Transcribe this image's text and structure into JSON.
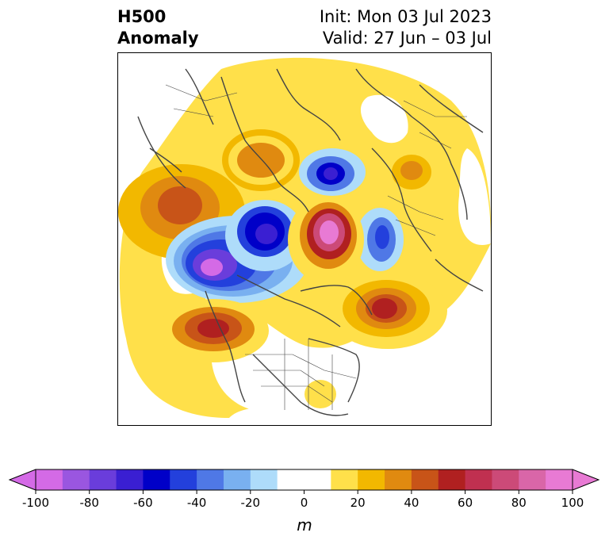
{
  "title": {
    "left_line1": "H500",
    "left_line2": "Anomaly",
    "right_line1": "Init: Mon 03 Jul 2023",
    "right_line2": "Valid: 27 Jun – 03 Jul"
  },
  "colorbar": {
    "unit_label": "m",
    "ticks": [
      "-100",
      "-80",
      "-60",
      "-40",
      "-20",
      "0",
      "20",
      "40",
      "60",
      "80",
      "100"
    ],
    "colors": [
      "#d46ae6",
      "#9a56e0",
      "#6a3ddb",
      "#3a1fd2",
      "#0000c8",
      "#2340dc",
      "#4f78e6",
      "#79b0f0",
      "#aedcfa",
      "#ffffff",
      "#ffffff",
      "#ffe04a",
      "#f2b800",
      "#e08a10",
      "#c85418",
      "#b02020",
      "#c03050",
      "#cc4a78",
      "#d966a8",
      "#e87ad4"
    ],
    "min_color": "#d46ae6",
    "max_color": "#e87ad4"
  },
  "anomaly_colors": {
    "pos20": "#ffe04a",
    "pos30": "#f2b800",
    "pos40": "#e08a10",
    "pos50": "#c85418",
    "pos60": "#b02020",
    "pos70": "#c03050",
    "pos80": "#cc4a78",
    "pos90": "#d966a8",
    "pos100": "#e87ad4",
    "neg20": "#aedcfa",
    "neg30": "#79b0f0",
    "neg40": "#4f78e6",
    "neg50": "#2340dc",
    "neg60": "#0000c8",
    "neg70": "#3a1fd2",
    "neg80": "#6a3ddb",
    "neg90": "#9a56e0",
    "neg100": "#d46ae6",
    "coast": "#444444"
  }
}
